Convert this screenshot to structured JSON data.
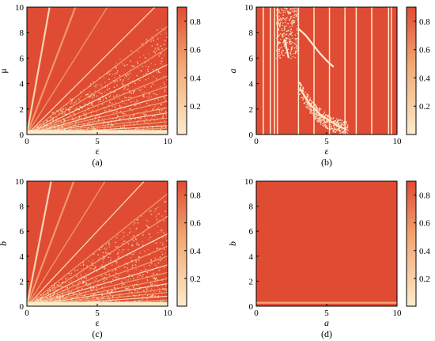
{
  "palette": {
    "low": "#fdebcc",
    "mid": "#f2a873",
    "high": "#e04b33",
    "border": "#000000"
  },
  "chart_data": [
    {
      "type": "heatmap",
      "caption": "(a)",
      "xlabel": "ε",
      "ylabel": "μ",
      "xlim": [
        0,
        10
      ],
      "ylim": [
        0,
        10
      ],
      "xticks": [
        "0",
        "5",
        "10"
      ],
      "yticks": [
        "0",
        "2",
        "4",
        "6",
        "8",
        "10"
      ],
      "colorbar": {
        "range": [
          0,
          0.9
        ],
        "ticks": [
          "0.2",
          "0.4",
          "0.6",
          "0.8"
        ]
      },
      "pattern": "fan",
      "fan_slopes": [
        6.2,
        2.9,
        1.75,
        1.1,
        0.85,
        0.68,
        0.55,
        0.46,
        0.38,
        0.31,
        0.26,
        0.21,
        0.17,
        0.13,
        0.1,
        0.07,
        0.05
      ],
      "bottom_band": [
        0,
        0.35
      ]
    },
    {
      "type": "heatmap",
      "caption": "(b)",
      "xlabel": "ε",
      "ylabel": "a",
      "xlim": [
        0,
        10
      ],
      "ylim": [
        0,
        10
      ],
      "xticks": [
        "0",
        "5",
        "10"
      ],
      "yticks": [
        "0",
        "2",
        "4",
        "6",
        "8",
        "10"
      ],
      "colorbar": {
        "range": [
          0,
          0.9
        ],
        "ticks": [
          "0.2",
          "0.4",
          "0.6",
          "0.8"
        ]
      },
      "pattern": "stripes",
      "stripes_x": [
        0.5,
        1.0,
        1.3,
        1.5,
        3.0,
        4.1,
        5.2,
        6.3,
        7.1,
        8.2,
        9.4,
        9.6
      ],
      "curves": [
        {
          "x": [
            3.0,
            3.5,
            4.0,
            4.5,
            5.0,
            5.5
          ],
          "y": [
            8.3,
            7.8,
            7.1,
            6.4,
            5.8,
            5.3
          ]
        },
        {
          "x": [
            3.1,
            3.8,
            4.5,
            5.2,
            5.9,
            6.4
          ],
          "y": [
            3.6,
            2.4,
            1.6,
            1.1,
            0.6,
            0.4
          ]
        },
        {
          "x": [
            2.0,
            2.1,
            2.2,
            2.3
          ],
          "y": [
            7.5,
            7.0,
            6.5,
            6.0
          ]
        }
      ]
    },
    {
      "type": "heatmap",
      "caption": "(c)",
      "xlabel": "ε",
      "ylabel": "b",
      "xlim": [
        0,
        10
      ],
      "ylim": [
        0,
        10
      ],
      "xticks": [
        "0",
        "5",
        "10"
      ],
      "yticks": [
        "0",
        "2",
        "4",
        "6",
        "8",
        "10"
      ],
      "colorbar": {
        "range": [
          0,
          0.9
        ],
        "ticks": [
          "0.2",
          "0.4",
          "0.6",
          "0.8"
        ]
      },
      "pattern": "fan",
      "fan_slopes": [
        5.8,
        3.0,
        1.8,
        1.2,
        0.9,
        0.72,
        0.58,
        0.48,
        0.4,
        0.33,
        0.27,
        0.22,
        0.18,
        0.14,
        0.11,
        0.08,
        0.05
      ],
      "bottom_band": [
        0,
        0.35
      ]
    },
    {
      "type": "heatmap",
      "caption": "(d)",
      "xlabel": "a",
      "ylabel": "b",
      "xlim": [
        0,
        10
      ],
      "ylim": [
        0,
        10
      ],
      "xticks": [
        "0",
        "5",
        "10"
      ],
      "yticks": [
        "0",
        "2",
        "4",
        "6",
        "8",
        "10"
      ],
      "colorbar": {
        "range": [
          0,
          0.9
        ],
        "ticks": [
          "0.2",
          "0.4",
          "0.6",
          "0.8"
        ]
      },
      "pattern": "uniform",
      "bottom_band": [
        0.2,
        0.35
      ]
    }
  ]
}
